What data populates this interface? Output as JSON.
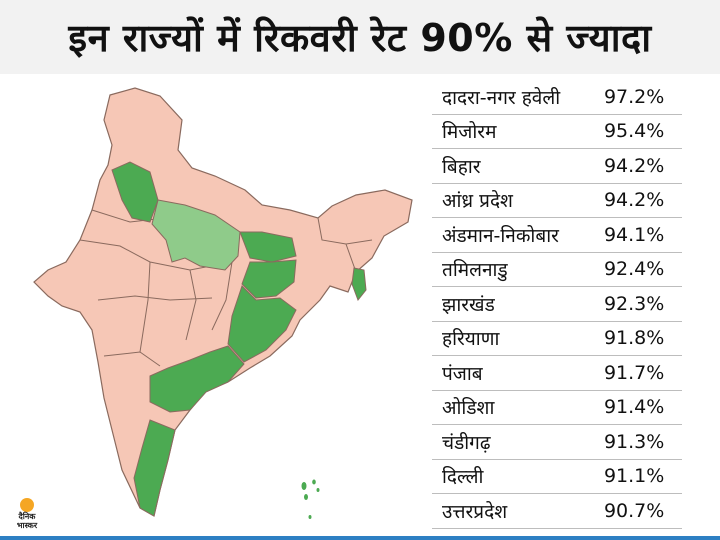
{
  "header": {
    "title": "इन राज्यों में रिकवरी रेट 90% से ज्यादा"
  },
  "colors": {
    "other_state": "#f6c7b6",
    "highlight_state": "#4caa52",
    "light_highlight_state": "#8fcb8a",
    "border": "#8a6a5e",
    "bottom_bar": "#2d7fc3"
  },
  "chart_data": {
    "type": "table",
    "title": "इन राज्यों में रिकवरी रेट 90% से ज्यादा",
    "rows": [
      {
        "state": "दादरा-नगर हवेली",
        "value": "97.2%"
      },
      {
        "state": "मिजोरम",
        "value": "95.4%"
      },
      {
        "state": "बिहार",
        "value": "94.2%"
      },
      {
        "state": "आंध्र प्रदेश",
        "value": "94.2%"
      },
      {
        "state": "अंडमान-निकोबार",
        "value": "94.1%"
      },
      {
        "state": "तमिलनाडु",
        "value": "92.4%"
      },
      {
        "state": "झारखंड",
        "value": "92.3%"
      },
      {
        "state": "हरियाणा",
        "value": "91.8%"
      },
      {
        "state": "पंजाब",
        "value": "91.7%"
      },
      {
        "state": "ओडिशा",
        "value": "91.4%"
      },
      {
        "state": "चंडीगढ़",
        "value": "91.3%"
      },
      {
        "state": "दिल्ली",
        "value": "91.1%"
      },
      {
        "state": "उत्तरप्रदेश",
        "value": "90.7%"
      }
    ]
  },
  "logo": {
    "line1": "दैनिक",
    "line2": "भास्कर"
  }
}
